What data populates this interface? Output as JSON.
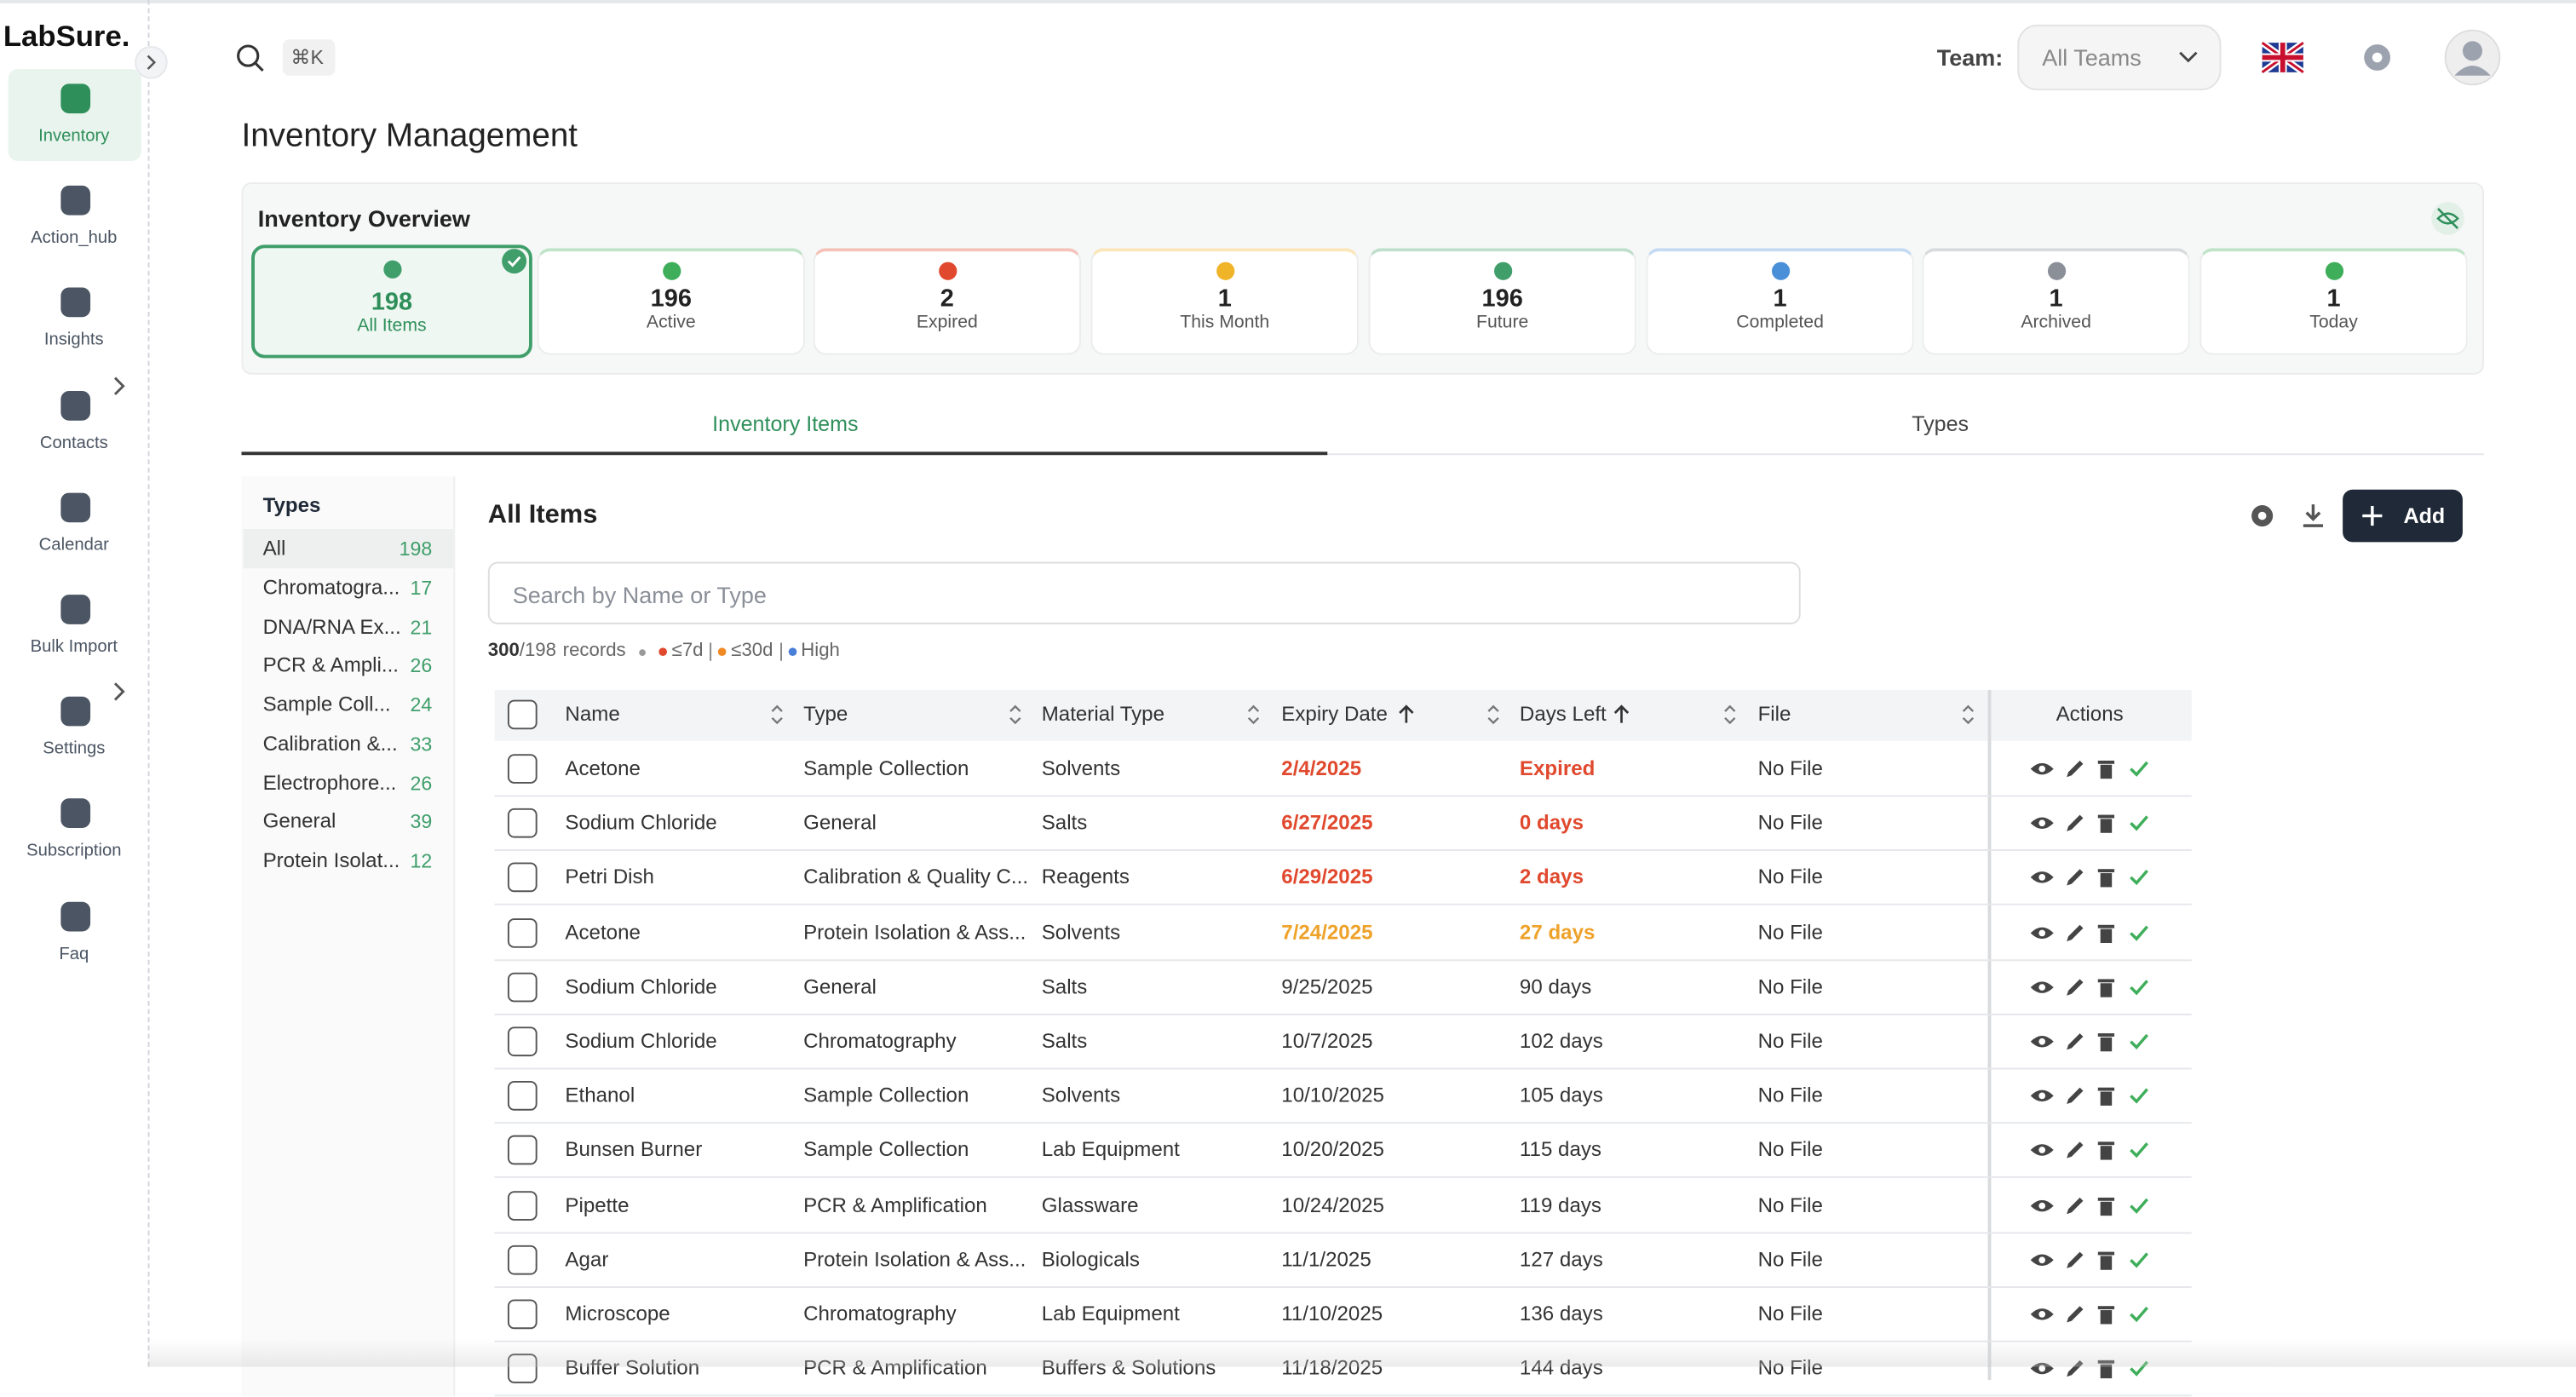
{
  "brand": "LabSure.",
  "nav": [
    "Inventory",
    "Action_hub",
    "Insights",
    "Contacts",
    "Calendar",
    "Bulk Import",
    "Settings",
    "Subscription",
    "Faq"
  ],
  "header": {
    "shortcut": "⌘K",
    "team_label": "Team:",
    "team_value": "All Teams"
  },
  "page_title": "Inventory Management",
  "overview": {
    "title": "Inventory Overview",
    "cards": [
      {
        "value": 198,
        "label": "All Items",
        "color": "#3f9e6a"
      },
      {
        "value": 196,
        "label": "Active",
        "color": "#3fae5a"
      },
      {
        "value": 2,
        "label": "Expired",
        "color": "#e0492e"
      },
      {
        "value": 1,
        "label": "This Month",
        "color": "#f0b429"
      },
      {
        "value": 196,
        "label": "Future",
        "color": "#3f9e6a"
      },
      {
        "value": 1,
        "label": "Completed",
        "color": "#4a90d9"
      },
      {
        "value": 1,
        "label": "Archived",
        "color": "#8a8f98"
      },
      {
        "value": 1,
        "label": "Today",
        "color": "#3fae5a"
      }
    ]
  },
  "tabs": [
    "Inventory Items",
    "Types"
  ],
  "types": {
    "title": "Types",
    "items": [
      {
        "name": "All",
        "count": 198
      },
      {
        "name": "Chromatogra...",
        "count": 17
      },
      {
        "name": "DNA/RNA Ex...",
        "count": 21
      },
      {
        "name": "PCR & Ampli...",
        "count": 26
      },
      {
        "name": "Sample Coll...",
        "count": 24
      },
      {
        "name": "Calibration &...",
        "count": 33
      },
      {
        "name": "Electrophore...",
        "count": 26
      },
      {
        "name": "General",
        "count": 39
      },
      {
        "name": "Protein Isolat...",
        "count": 12
      }
    ]
  },
  "items": {
    "title": "All Items",
    "add": "Add",
    "search_placeholder": "Search by Name or Type",
    "records_shown": 300,
    "records_total": 198,
    "records_word": "records",
    "legend": [
      {
        "label": "≤7d",
        "color": "#e0492e"
      },
      {
        "label": "≤30d",
        "color": "#f08a24"
      },
      {
        "label": "High",
        "color": "#4a7fd9"
      }
    ]
  },
  "table": {
    "columns": [
      "Name",
      "Type",
      "Material Type",
      "Expiry Date",
      "Days Left",
      "File"
    ],
    "actions": "Actions",
    "rows": [
      {
        "cells": [
          "Acetone",
          "Sample Collection",
          "Solvents",
          "2/4/2025",
          "Expired",
          "No File"
        ],
        "color": "#e0492e"
      },
      {
        "cells": [
          "Sodium Chloride",
          "General",
          "Salts",
          "6/27/2025",
          "0 days",
          "No File"
        ],
        "color": "#e0492e"
      },
      {
        "cells": [
          "Petri Dish",
          "Calibration & Quality C...",
          "Reagents",
          "6/29/2025",
          "2 days",
          "No File"
        ],
        "color": "#e0492e"
      },
      {
        "cells": [
          "Acetone",
          "Protein Isolation & Ass...",
          "Solvents",
          "7/24/2025",
          "27 days",
          "No File"
        ],
        "color": "#eea22a"
      },
      {
        "cells": [
          "Sodium Chloride",
          "General",
          "Salts",
          "9/25/2025",
          "90 days",
          "No File"
        ]
      },
      {
        "cells": [
          "Sodium Chloride",
          "Chromatography",
          "Salts",
          "10/7/2025",
          "102 days",
          "No File"
        ]
      },
      {
        "cells": [
          "Ethanol",
          "Sample Collection",
          "Solvents",
          "10/10/2025",
          "105 days",
          "No File"
        ]
      },
      {
        "cells": [
          "Bunsen Burner",
          "Sample Collection",
          "Lab Equipment",
          "10/20/2025",
          "115 days",
          "No File"
        ]
      },
      {
        "cells": [
          "Pipette",
          "PCR & Amplification",
          "Glassware",
          "10/24/2025",
          "119 days",
          "No File"
        ]
      },
      {
        "cells": [
          "Agar",
          "Protein Isolation & Ass...",
          "Biologicals",
          "11/1/2025",
          "127 days",
          "No File"
        ]
      },
      {
        "cells": [
          "Microscope",
          "Chromatography",
          "Lab Equipment",
          "11/10/2025",
          "136 days",
          "No File"
        ]
      },
      {
        "cells": [
          "Buffer Solution",
          "PCR & Amplification",
          "Buffers & Solutions",
          "11/18/2025",
          "144 days",
          "No File"
        ]
      }
    ]
  }
}
